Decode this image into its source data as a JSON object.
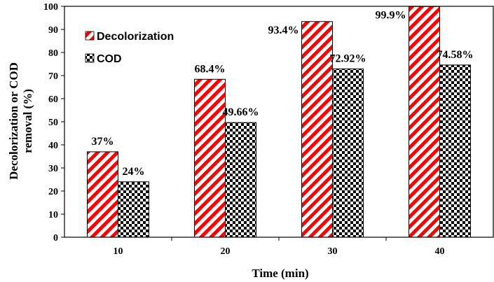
{
  "chart_data": {
    "type": "bar",
    "title": "",
    "xlabel": "Time (min)",
    "ylabel_lines": [
      "Decolorization or COD",
      "removal (%)"
    ],
    "categories": [
      "10",
      "20",
      "30",
      "40"
    ],
    "series": [
      {
        "name": "Decolorization",
        "values": [
          37,
          68.4,
          93.4,
          99.9
        ],
        "labels": [
          "37%",
          "68.4%",
          "93.4%",
          "99.9%"
        ],
        "pattern": "diagonal-stripes",
        "color": "#ff0000"
      },
      {
        "name": "COD",
        "values": [
          24,
          49.66,
          72.92,
          74.58
        ],
        "labels": [
          "24%",
          "49.66%",
          "72.92%",
          "74.58%"
        ],
        "pattern": "checkerboard",
        "color": "#000000"
      }
    ],
    "ylim": [
      0,
      100
    ],
    "yticks": [
      "0",
      "10",
      "20",
      "30",
      "40",
      "50",
      "60",
      "70",
      "80",
      "90",
      "100"
    ],
    "grid": false,
    "legend_position": "top-left"
  }
}
